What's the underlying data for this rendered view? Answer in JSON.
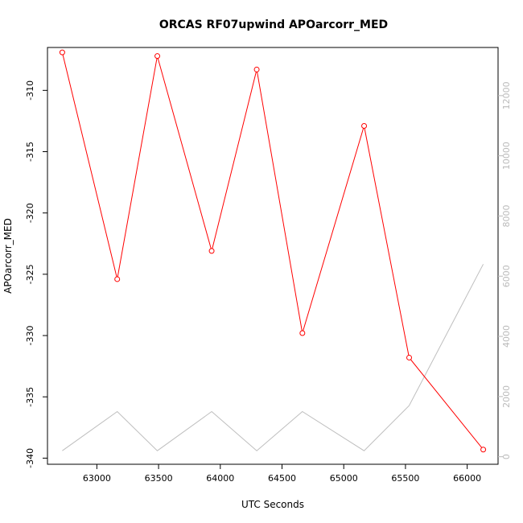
{
  "chart_data": {
    "type": "line",
    "title": "ORCAS RF07upwind APOarcorr_MED",
    "xlabel": "UTC Seconds",
    "ylabel": "APOarcorr_MED",
    "xlim": [
      62600,
      66250
    ],
    "ylim": [
      -340.5,
      -306.5
    ],
    "y2lim": [
      -250,
      13600
    ],
    "x_ticks": [
      63000,
      63500,
      64000,
      64500,
      65000,
      65500,
      66000
    ],
    "y_ticks": [
      -310,
      -315,
      -320,
      -325,
      -330,
      -335,
      -340
    ],
    "y2_ticks": [
      0,
      2000,
      4000,
      6000,
      8000,
      10000,
      12000
    ],
    "grid": false,
    "colors": {
      "primary": "#ff0000",
      "secondary": "#bebebe"
    },
    "series": [
      {
        "axis": "left",
        "marker": "open-circle",
        "x": [
          62720,
          63165,
          63490,
          63930,
          64295,
          64665,
          65165,
          65530,
          66130
        ],
        "y": [
          -306.9,
          -325.4,
          -307.2,
          -323.1,
          -308.3,
          -329.8,
          -312.9,
          -331.8,
          -339.3
        ]
      },
      {
        "axis": "right",
        "marker": "none",
        "x": [
          62720,
          63165,
          63490,
          63930,
          64295,
          64665,
          65165,
          65530,
          66130
        ],
        "y": [
          200,
          1500,
          200,
          1500,
          200,
          1500,
          200,
          1700,
          6400
        ]
      }
    ]
  }
}
